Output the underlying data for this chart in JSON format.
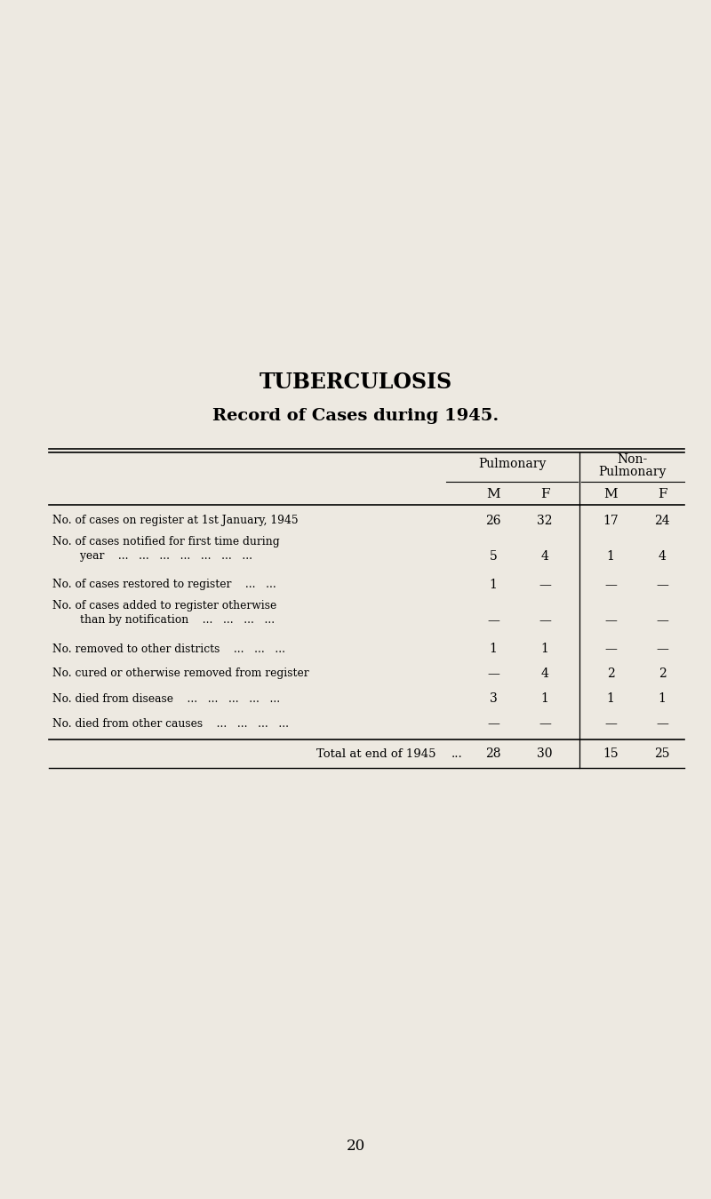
{
  "title": "TUBERCULOSIS",
  "subtitle": "Record of Cases during 1945.",
  "background_color": "#ede9e1",
  "page_number": "20",
  "rows": [
    {
      "label": "No. of cases on register at 1st January, 1945",
      "label2": null,
      "values": [
        "26",
        "32",
        "17",
        "24"
      ],
      "val_row": 0
    },
    {
      "label": "No. of cases notified for first time during",
      "label2": "        year    ...   ...   ...   ...   ...   ...   ...",
      "values": [
        "5",
        "4",
        "1",
        "4"
      ],
      "val_row": 1
    },
    {
      "label": "No. of cases restored to register    ...   ...",
      "label2": null,
      "values": [
        "1",
        "—",
        "—",
        "—"
      ],
      "val_row": 0
    },
    {
      "label": "No. of cases added to register otherwise",
      "label2": "        than by notification    ...   ...   ...   ...",
      "values": [
        "—",
        "—",
        "—",
        "—"
      ],
      "val_row": 1
    },
    {
      "label": "No. removed to other districts    ...   ...   ...",
      "label2": null,
      "values": [
        "1",
        "1",
        "—",
        "—"
      ],
      "val_row": 0
    },
    {
      "label": "No. cured or otherwise removed from register",
      "label2": null,
      "values": [
        "—",
        "4",
        "2",
        "2"
      ],
      "val_row": 0
    },
    {
      "label": "No. died from disease    ...   ...   ...   ...   ...",
      "label2": null,
      "values": [
        "3",
        "1",
        "1",
        "1"
      ],
      "val_row": 0
    },
    {
      "label": "No. died from other causes    ...   ...   ...   ...",
      "label2": null,
      "values": [
        "—",
        "—",
        "—",
        "—"
      ],
      "val_row": 0
    }
  ],
  "total_row": {
    "label": "Total at end of 1945",
    "label_dots": "...",
    "values": [
      "28",
      "30",
      "15",
      "25"
    ]
  }
}
